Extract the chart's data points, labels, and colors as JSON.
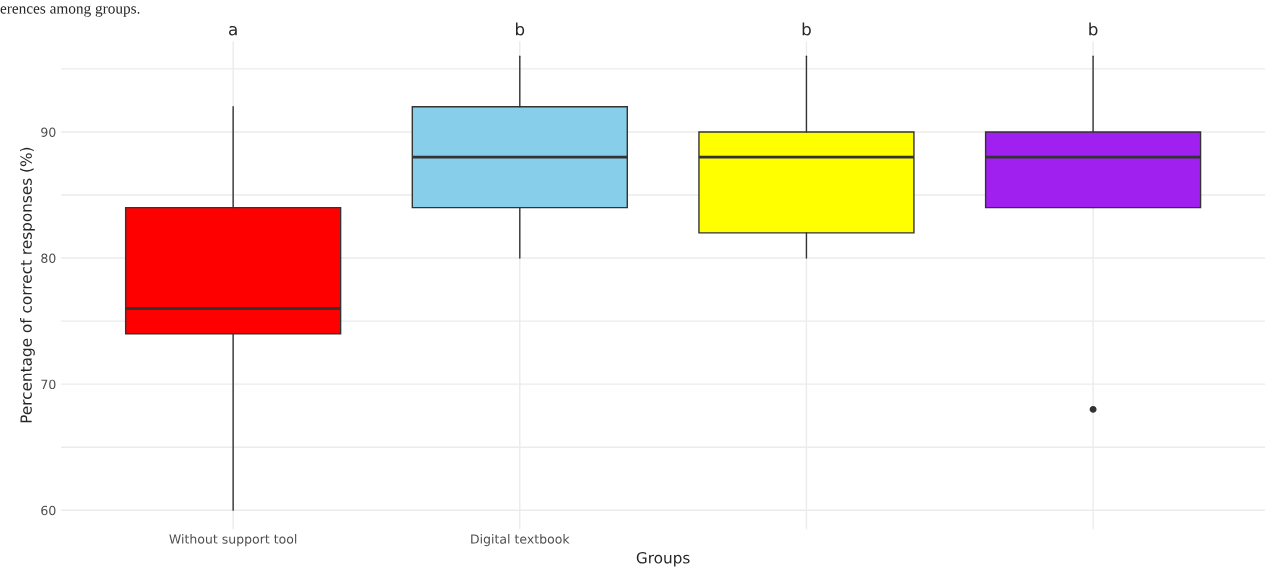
{
  "chart_data": {
    "type": "box",
    "xlabel": "Groups",
    "ylabel": "Percentage of correct responses (%)",
    "categories": [
      "Without support tool",
      "Digital textbook",
      null,
      null
    ],
    "colors": [
      "#ff0000",
      "#87ceeb",
      "#ffff00",
      "#a020f0"
    ],
    "boxes": [
      {
        "low": 60,
        "q1": 74,
        "median": 76,
        "q3": 84,
        "high": 92
      },
      {
        "low": 80,
        "q1": 84,
        "median": 88,
        "q3": 92,
        "high": 96
      },
      {
        "low": 80,
        "q1": 82,
        "median": 88,
        "q3": 90,
        "high": 96
      },
      {
        "low": 84,
        "q1": 84,
        "median": 88,
        "q3": 90,
        "high": 96,
        "outliers": [
          68
        ]
      }
    ],
    "ylim": [
      58.5,
      97.2
    ],
    "yticks": [
      60,
      {
        "value": 65,
        "label": null
      },
      70,
      {
        "value": 75,
        "label": null
      },
      80,
      {
        "value": 85,
        "label": null
      },
      90,
      {
        "value": 95,
        "label": null
      }
    ],
    "grid": true,
    "annotations": [
      "erences among groups.",
      "a",
      "b",
      "b",
      "b"
    ]
  }
}
